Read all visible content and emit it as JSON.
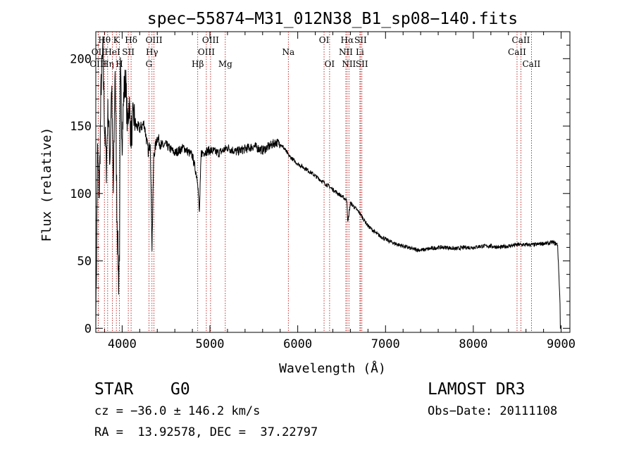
{
  "chart_data": {
    "type": "line",
    "title": "spec−55874−M31_012N38_B1_sp08−140.fits",
    "xlabel": "Wavelength (Å)",
    "ylabel": "Flux (relative)",
    "xlim": [
      3700,
      9100
    ],
    "ylim": [
      -3,
      220
    ],
    "x_ticks": [
      4000,
      5000,
      6000,
      7000,
      8000,
      9000
    ],
    "x_tick_labels": [
      "4000",
      "5000",
      "6000",
      "7000",
      "8000",
      "9000"
    ],
    "y_ticks": [
      0,
      50,
      100,
      150,
      200
    ],
    "y_tick_labels": [
      "0",
      "50",
      "100",
      "150",
      "200"
    ],
    "grid": false,
    "series": [
      {
        "name": "flux",
        "x": [
          3700,
          3720,
          3740,
          3760,
          3780,
          3800,
          3820,
          3840,
          3860,
          3880,
          3900,
          3920,
          3940,
          3960,
          3970,
          3980,
          4000,
          4020,
          4040,
          4060,
          4080,
          4100,
          4130,
          4160,
          4200,
          4250,
          4300,
          4320,
          4340,
          4360,
          4400,
          4450,
          4500,
          4600,
          4700,
          4800,
          4860,
          4880,
          4900,
          5000,
          5100,
          5200,
          5300,
          5400,
          5500,
          5600,
          5700,
          5750,
          5800,
          5850,
          5900,
          6000,
          6100,
          6200,
          6300,
          6400,
          6500,
          6560,
          6570,
          6600,
          6700,
          6800,
          6900,
          7000,
          7100,
          7200,
          7300,
          7400,
          7500,
          7600,
          7700,
          7800,
          7900,
          8000,
          8100,
          8200,
          8300,
          8400,
          8500,
          8600,
          8700,
          8800,
          8860,
          8900,
          8960,
          9000
        ],
        "y": [
          0,
          130,
          100,
          180,
          205,
          150,
          120,
          165,
          125,
          180,
          100,
          195,
          90,
          35,
          60,
          190,
          140,
          175,
          185,
          150,
          168,
          142,
          158,
          150,
          148,
          152,
          130,
          140,
          60,
          128,
          142,
          135,
          136,
          130,
          134,
          128,
          110,
          85,
          130,
          132,
          130,
          134,
          131,
          133,
          135,
          132,
          136,
          138,
          137,
          133,
          128,
          122,
          118,
          113,
          108,
          103,
          98,
          95,
          78,
          93,
          86,
          76,
          70,
          66,
          63,
          61,
          59,
          58,
          59,
          60,
          60,
          59,
          60,
          60,
          61,
          61,
          60,
          61,
          62,
          62,
          62,
          63,
          63,
          64,
          62,
          0
        ]
      }
    ],
    "lines": [
      {
        "label": "Hθ",
        "x": 3798,
        "row": 1
      },
      {
        "label": "OII",
        "x": 3727,
        "row": 2
      },
      {
        "label": "OIII",
        "x": 3727,
        "row": 3
      },
      {
        "label": "Hη",
        "x": 3835,
        "row": 3
      },
      {
        "label": "HeI",
        "x": 3889,
        "row": 2
      },
      {
        "label": "K",
        "x": 3934,
        "row": 1
      },
      {
        "label": "H",
        "x": 3969,
        "row": 3
      },
      {
        "label": "SII",
        "x": 4070,
        "row": 2
      },
      {
        "label": "Hδ",
        "x": 4102,
        "row": 1
      },
      {
        "label": "OIII",
        "x": 4363,
        "row": 1
      },
      {
        "label": "Hγ",
        "x": 4340,
        "row": 2
      },
      {
        "label": "G",
        "x": 4305,
        "row": 3
      },
      {
        "label": "Hβ",
        "x": 4861,
        "row": 3
      },
      {
        "label": "OIII",
        "x": 5007,
        "row": 1
      },
      {
        "label": "OIII",
        "x": 4959,
        "row": 2
      },
      {
        "label": "Mg",
        "x": 5175,
        "row": 3
      },
      {
        "label": "Na",
        "x": 5893,
        "row": 2
      },
      {
        "label": "OI",
        "x": 6300,
        "row": 1
      },
      {
        "label": "OI",
        "x": 6363,
        "row": 3
      },
      {
        "label": "Hα",
        "x": 6563,
        "row": 1
      },
      {
        "label": "NII",
        "x": 6548,
        "row": 2
      },
      {
        "label": "NII",
        "x": 6583,
        "row": 3
      },
      {
        "label": "SII",
        "x": 6716,
        "row": 1
      },
      {
        "label": "Li",
        "x": 6708,
        "row": 2
      },
      {
        "label": "SII",
        "x": 6731,
        "row": 3
      },
      {
        "label": "CaII",
        "x": 8542,
        "row": 1
      },
      {
        "label": "CaII",
        "x": 8498,
        "row": 2
      },
      {
        "label": "CaII",
        "x": 8662,
        "row": 3
      }
    ]
  },
  "info": {
    "class_label": "STAR",
    "subclass": "G0",
    "survey": "LAMOST DR3",
    "cz": "cz = −36.0 ± 146.2 km/s",
    "obs_date": "Obs−Date: 20111108",
    "radec": "RA =  13.92578, DEC =  37.22797"
  }
}
